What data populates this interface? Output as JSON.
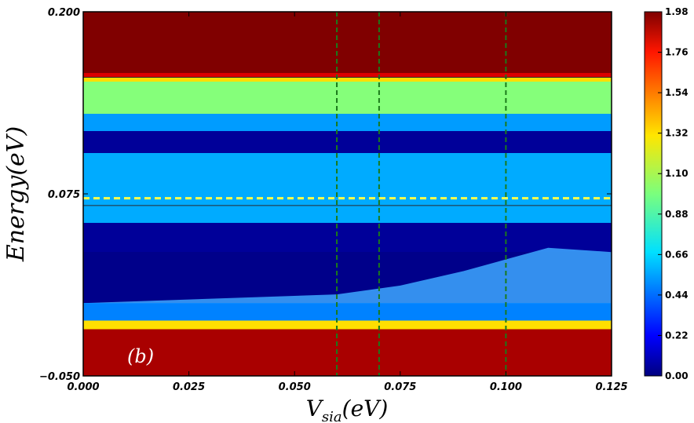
{
  "chart_data": {
    "type": "heatmap",
    "panel_label": "(b)",
    "xlabel_base": "V",
    "xlabel_sub": "sia",
    "xlabel_unit": "(eV)",
    "ylabel": "Energy(eV)",
    "xlim": [
      0.0,
      0.125
    ],
    "ylim": [
      -0.05,
      0.2
    ],
    "x_ticks": [
      "0.000",
      "0.025",
      "0.050",
      "0.075",
      "0.100",
      "0.125"
    ],
    "x_tick_values": [
      0.0,
      0.025,
      0.05,
      0.075,
      0.1,
      0.125
    ],
    "y_ticks": [
      "−0.050",
      "0.075",
      "0.200"
    ],
    "y_tick_values": [
      -0.05,
      0.075,
      0.2
    ],
    "colorbar": {
      "range": [
        0.0,
        1.98
      ],
      "ticks": [
        "0.00",
        "0.22",
        "0.44",
        "0.66",
        "0.88",
        "1.10",
        "1.32",
        "1.54",
        "1.76",
        "1.98"
      ],
      "tick_values": [
        0.0,
        0.22,
        0.44,
        0.66,
        0.88,
        1.1,
        1.32,
        1.54,
        1.76,
        1.98
      ],
      "colormap": "jet"
    },
    "bands": [
      {
        "from": 0.2,
        "to": 0.158,
        "value": 1.98
      },
      {
        "from": 0.158,
        "to": 0.155,
        "value": 1.8
      },
      {
        "from": 0.155,
        "to": 0.152,
        "value": 1.3
      },
      {
        "from": 0.152,
        "to": 0.13,
        "value": 1.0
      },
      {
        "from": 0.13,
        "to": 0.118,
        "value": 0.55
      },
      {
        "from": 0.118,
        "to": 0.103,
        "value": 0.05
      },
      {
        "from": 0.103,
        "to": 0.055,
        "value": 0.58
      },
      {
        "from": 0.055,
        "to": 0.035,
        "value": 0.05
      },
      {
        "from": 0.035,
        "to": 0.0,
        "value": 0.02
      },
      {
        "from": 0.0,
        "to": -0.012,
        "value": 0.5
      },
      {
        "from": -0.012,
        "to": -0.018,
        "value": 1.3
      },
      {
        "from": -0.018,
        "to": -0.05,
        "value": 1.9
      }
    ],
    "horizontal_lines": [
      {
        "y": 0.155,
        "style": "solid",
        "color": "#2b2b2b"
      },
      {
        "y": 0.067,
        "style": "solid",
        "color": "#2b2b2b"
      },
      {
        "y": 0.072,
        "style": "dashed",
        "color": "#ffff4a"
      }
    ],
    "vertical_lines": [
      {
        "x": 0.06,
        "style": "dashed",
        "color": "#1a7a1a"
      },
      {
        "x": 0.07,
        "style": "dashed",
        "color": "#1a7a1a"
      },
      {
        "x": 0.1,
        "style": "dashed",
        "color": "#1a7a1a"
      }
    ]
  }
}
